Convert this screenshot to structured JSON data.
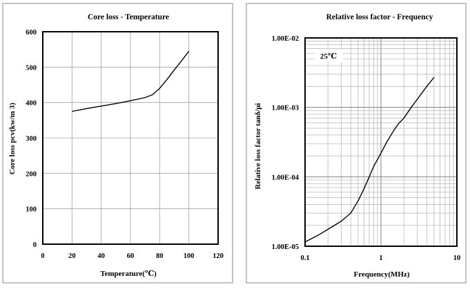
{
  "chart_data": [
    {
      "type": "line",
      "title": "Core loss - Temperature",
      "xlabel": "Temperature(℃)",
      "ylabel": "Core loss pcv(kw/m 3)",
      "xlim": [
        0,
        120
      ],
      "ylim": [
        0,
        600
      ],
      "xticks": [
        0,
        20,
        40,
        60,
        80,
        100,
        120
      ],
      "yticks": [
        0,
        100,
        200,
        300,
        400,
        500,
        600
      ],
      "x_tick_labels": [
        "0",
        "20",
        "40",
        "60",
        "80",
        "100",
        "120"
      ],
      "y_tick_labels": [
        "0",
        "100",
        "200",
        "300",
        "400",
        "500",
        "600"
      ],
      "grid": true,
      "series": [
        {
          "x": [
            20,
            30,
            40,
            50,
            60,
            70,
            75,
            80,
            85,
            90,
            95,
            100
          ],
          "y": [
            375,
            383,
            390,
            397,
            405,
            414,
            422,
            440,
            465,
            492,
            518,
            545
          ]
        }
      ]
    },
    {
      "type": "line",
      "title": "Relative loss factor - Frequency",
      "xlabel": "Frequency(MHz)",
      "ylabel": "Relative loss factor tanδ/μi",
      "xscale": "log",
      "yscale": "log",
      "xlim": [
        0.1,
        10
      ],
      "ylim": [
        1e-05,
        0.01
      ],
      "xticks": [
        0.1,
        1,
        10
      ],
      "yticks": [
        1e-05,
        0.0001,
        0.001,
        0.01
      ],
      "x_tick_labels": [
        "0.1",
        "1",
        "10"
      ],
      "y_tick_labels": [
        "1.00E-05",
        "1.00E-04",
        "1.00E-03",
        "1.00E-02"
      ],
      "grid": true,
      "annotation": "25℃",
      "series": [
        {
          "x": [
            0.1,
            0.15,
            0.2,
            0.3,
            0.4,
            0.5,
            0.6,
            0.7,
            0.8,
            1.0,
            1.2,
            1.5,
            1.7,
            2.0,
            2.5,
            3.0,
            4.0,
            5.0
          ],
          "y": [
            1.15e-05,
            1.45e-05,
            1.75e-05,
            2.3e-05,
            3e-05,
            4.5e-05,
            6.8e-05,
            0.0001,
            0.00014,
            0.00022,
            0.00032,
            0.00048,
            0.00058,
            0.0007,
            0.001,
            0.0013,
            0.002,
            0.0027
          ]
        }
      ]
    }
  ]
}
